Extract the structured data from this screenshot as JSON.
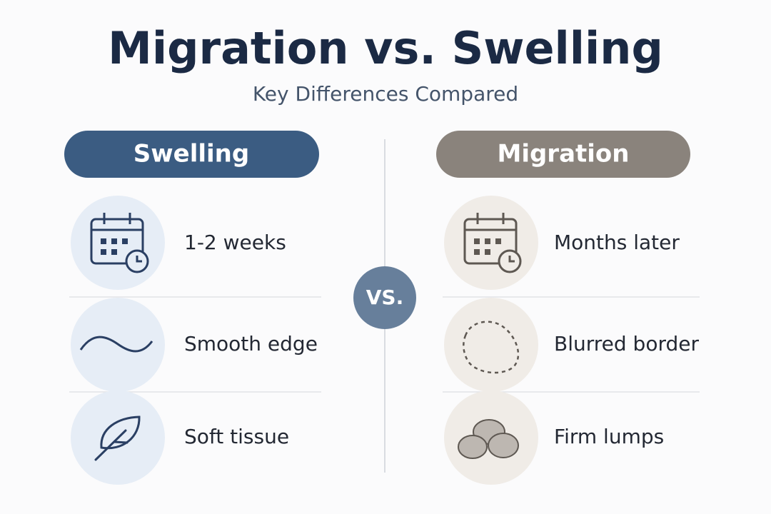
{
  "header": {
    "title": "Migration vs. Swelling",
    "subtitle": "Key Differences Compared"
  },
  "divider_label": "VS.",
  "columns": [
    {
      "heading": "Swelling",
      "items": [
        "1-2 weeks",
        "Smooth edge",
        "Soft tissue"
      ]
    },
    {
      "heading": "Migration",
      "items": [
        "Months later",
        "Blurred border",
        "Firm lumps"
      ]
    }
  ]
}
